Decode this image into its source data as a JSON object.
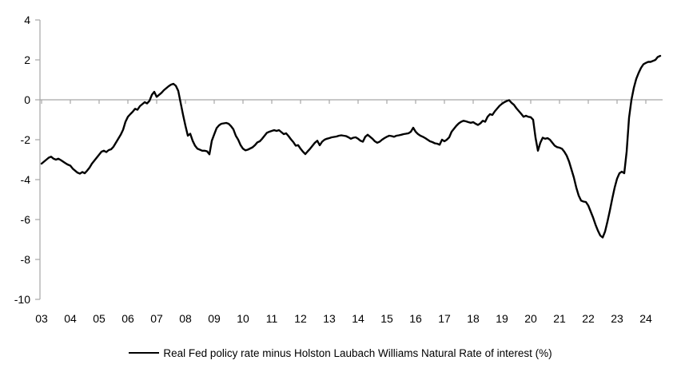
{
  "chart_data": {
    "type": "line",
    "title": "",
    "legend": "Real Fed policy rate minus Holston Laubach Williams Natural Rate of interest (%)",
    "legend_position": "bottom-center",
    "x_start_year": 2003,
    "frequency_per_year": 12,
    "x_tick_labels": [
      "03",
      "04",
      "05",
      "06",
      "07",
      "08",
      "09",
      "10",
      "11",
      "12",
      "13",
      "14",
      "15",
      "16",
      "17",
      "18",
      "19",
      "20",
      "21",
      "22",
      "23",
      "24"
    ],
    "y_ticks": [
      4,
      2,
      0,
      -2,
      -4,
      -6,
      -8,
      -10
    ],
    "ylim": [
      -10,
      4
    ],
    "grid": "zero-line-only",
    "axis_color": "#A6A6A6",
    "text_color": "#000000",
    "series": [
      {
        "name": "Real Fed policy rate minus Holston Laubach Williams Natural Rate of interest (%)",
        "color": "#000000",
        "values": [
          -3.2,
          -3.1,
          -3.0,
          -2.9,
          -2.85,
          -2.95,
          -3.0,
          -2.95,
          -3.02,
          -3.1,
          -3.18,
          -3.25,
          -3.3,
          -3.45,
          -3.55,
          -3.65,
          -3.7,
          -3.62,
          -3.68,
          -3.55,
          -3.4,
          -3.2,
          -3.05,
          -2.9,
          -2.75,
          -2.6,
          -2.55,
          -2.62,
          -2.52,
          -2.48,
          -2.35,
          -2.15,
          -1.95,
          -1.75,
          -1.5,
          -1.1,
          -0.85,
          -0.72,
          -0.6,
          -0.45,
          -0.5,
          -0.32,
          -0.22,
          -0.12,
          -0.18,
          -0.05,
          0.25,
          0.4,
          0.15,
          0.25,
          0.35,
          0.48,
          0.58,
          0.68,
          0.76,
          0.8,
          0.7,
          0.45,
          -0.15,
          -0.75,
          -1.3,
          -1.8,
          -1.7,
          -2.05,
          -2.3,
          -2.45,
          -2.5,
          -2.55,
          -2.55,
          -2.58,
          -2.73,
          -2.05,
          -1.73,
          -1.42,
          -1.28,
          -1.2,
          -1.18,
          -1.16,
          -1.2,
          -1.32,
          -1.48,
          -1.8,
          -2.0,
          -2.27,
          -2.45,
          -2.53,
          -2.5,
          -2.44,
          -2.38,
          -2.27,
          -2.13,
          -2.08,
          -1.95,
          -1.8,
          -1.65,
          -1.6,
          -1.56,
          -1.52,
          -1.56,
          -1.52,
          -1.62,
          -1.72,
          -1.68,
          -1.82,
          -1.98,
          -2.12,
          -2.3,
          -2.27,
          -2.45,
          -2.6,
          -2.72,
          -2.58,
          -2.45,
          -2.3,
          -2.15,
          -2.05,
          -2.28,
          -2.1,
          -2.0,
          -1.95,
          -1.92,
          -1.88,
          -1.86,
          -1.84,
          -1.8,
          -1.78,
          -1.8,
          -1.82,
          -1.88,
          -1.95,
          -1.9,
          -1.88,
          -1.95,
          -2.05,
          -2.1,
          -1.85,
          -1.75,
          -1.85,
          -1.95,
          -2.08,
          -2.15,
          -2.1,
          -2.0,
          -1.92,
          -1.85,
          -1.8,
          -1.82,
          -1.85,
          -1.8,
          -1.78,
          -1.75,
          -1.72,
          -1.7,
          -1.68,
          -1.6,
          -1.4,
          -1.6,
          -1.72,
          -1.8,
          -1.85,
          -1.92,
          -2.0,
          -2.08,
          -2.12,
          -2.18,
          -2.2,
          -2.25,
          -2.0,
          -2.08,
          -2.0,
          -1.88,
          -1.6,
          -1.45,
          -1.3,
          -1.18,
          -1.1,
          -1.05,
          -1.08,
          -1.12,
          -1.15,
          -1.12,
          -1.2,
          -1.26,
          -1.18,
          -1.05,
          -1.1,
          -0.85,
          -0.72,
          -0.76,
          -0.58,
          -0.44,
          -0.3,
          -0.2,
          -0.12,
          -0.06,
          -0.02,
          -0.15,
          -0.25,
          -0.42,
          -0.56,
          -0.7,
          -0.85,
          -0.8,
          -0.85,
          -0.87,
          -1.0,
          -1.9,
          -2.55,
          -2.15,
          -1.9,
          -1.95,
          -1.92,
          -2.0,
          -2.15,
          -2.3,
          -2.37,
          -2.4,
          -2.45,
          -2.6,
          -2.8,
          -3.1,
          -3.5,
          -3.9,
          -4.4,
          -4.8,
          -5.05,
          -5.1,
          -5.12,
          -5.3,
          -5.6,
          -5.9,
          -6.25,
          -6.55,
          -6.8,
          -6.9,
          -6.6,
          -6.1,
          -5.55,
          -4.95,
          -4.4,
          -3.95,
          -3.68,
          -3.6,
          -3.68,
          -2.6,
          -0.9,
          0.0,
          0.6,
          1.05,
          1.35,
          1.6,
          1.78,
          1.85,
          1.9,
          1.9,
          1.95,
          2.0,
          2.15,
          2.2
        ]
      }
    ]
  }
}
